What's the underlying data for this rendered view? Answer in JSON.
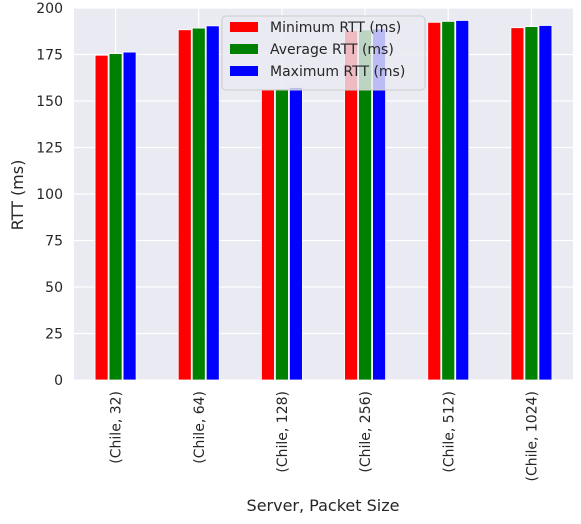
{
  "chart_data": {
    "type": "bar",
    "title": "",
    "xlabel": "Server, Packet Size",
    "ylabel": "RTT (ms)",
    "ylim": [
      0,
      200
    ],
    "yticks": [
      0,
      25,
      50,
      75,
      100,
      125,
      150,
      175,
      200
    ],
    "grid": true,
    "legend_position": "top-center",
    "categories": [
      "(Chile, 32)",
      "(Chile, 64)",
      "(Chile, 128)",
      "(Chile, 256)",
      "(Chile, 512)",
      "(Chile, 1024)"
    ],
    "series": [
      {
        "name": "Minimum RTT (ms)",
        "color": "#ff0000",
        "values": [
          174.6,
          188.3,
          156.0,
          187.8,
          192.3,
          189.4
        ]
      },
      {
        "name": "Average RTT (ms)",
        "color": "#008000",
        "values": [
          175.5,
          189.2,
          156.6,
          188.2,
          192.8,
          190.0
        ]
      },
      {
        "name": "Maximum RTT (ms)",
        "color": "#0000ff",
        "values": [
          176.3,
          190.4,
          157.3,
          188.8,
          193.3,
          190.6
        ]
      }
    ]
  }
}
